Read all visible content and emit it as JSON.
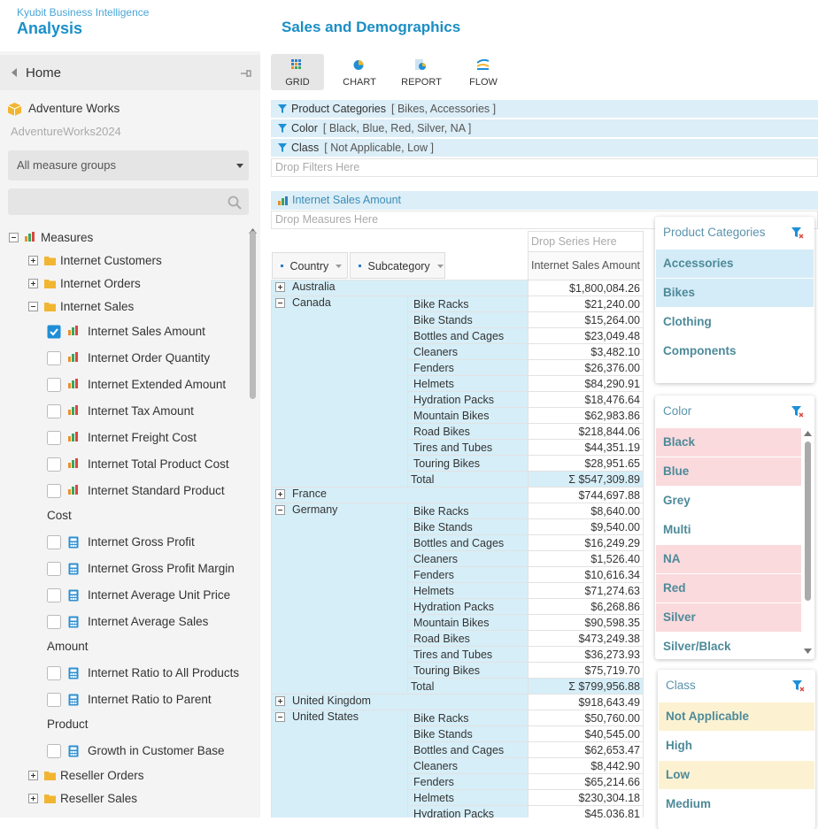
{
  "header": {
    "app": "Kyubit Business Intelligence",
    "title": "Analysis",
    "page_title": "Sales and Demographics"
  },
  "sidebar": {
    "home": "Home",
    "cube": "Adventure Works",
    "database": "AdventureWorks2024",
    "measure_groups": "All measure groups",
    "tree": [
      {
        "label": "Measures",
        "type": "root",
        "expanded": true
      },
      {
        "label": "Internet Customers",
        "type": "folder",
        "expanded": false
      },
      {
        "label": "Internet Orders",
        "type": "folder",
        "expanded": false
      },
      {
        "label": "Internet Sales",
        "type": "folder",
        "expanded": true
      },
      {
        "label": "Internet Sales Amount",
        "type": "measure",
        "checked": true
      },
      {
        "label": "Internet Order Quantity",
        "type": "measure",
        "checked": false
      },
      {
        "label": "Internet Extended Amount",
        "type": "measure",
        "checked": false
      },
      {
        "label": "Internet Tax Amount",
        "type": "measure",
        "checked": false
      },
      {
        "label": "Internet Freight Cost",
        "type": "measure",
        "checked": false
      },
      {
        "label": "Internet Total Product Cost",
        "type": "measure",
        "checked": false
      },
      {
        "label": "Internet Standard Product Cost",
        "type": "measure",
        "checked": false
      },
      {
        "label": "Internet Gross Profit",
        "type": "calc",
        "checked": false
      },
      {
        "label": "Internet Gross Profit Margin",
        "type": "calc",
        "checked": false
      },
      {
        "label": "Internet Average Unit Price",
        "type": "calc",
        "checked": false
      },
      {
        "label": "Internet Average Sales Amount",
        "type": "calc",
        "checked": false
      },
      {
        "label": "Internet Ratio to All Products",
        "type": "calc",
        "checked": false
      },
      {
        "label": "Internet Ratio to Parent Product",
        "type": "calc",
        "checked": false
      },
      {
        "label": "Growth in Customer Base",
        "type": "calc",
        "checked": false
      },
      {
        "label": "Reseller Orders",
        "type": "folder",
        "expanded": false
      },
      {
        "label": "Reseller Sales",
        "type": "folder",
        "expanded": false
      }
    ]
  },
  "toolbar": [
    {
      "label": "GRID",
      "active": true
    },
    {
      "label": "CHART",
      "active": false
    },
    {
      "label": "REPORT",
      "active": false
    },
    {
      "label": "FLOW",
      "active": false
    }
  ],
  "filters": [
    {
      "name": "Product Categories",
      "values": "[ Bikes, Accessories ]"
    },
    {
      "name": "Color",
      "values": "[ Black, Blue, Red, Silver, NA ]"
    },
    {
      "name": "Class",
      "values": "[ Not Applicable, Low ]"
    }
  ],
  "drop_filters": "Drop Filters Here",
  "measure": "Internet Sales Amount",
  "drop_measures": "Drop Measures Here",
  "drop_series": "Drop Series Here",
  "row_headers": [
    "Country",
    "Subcategory"
  ],
  "measure_header": "Internet Sales Amount",
  "groups": [
    {
      "country": "Australia",
      "expanded": false,
      "value": "$1,800,084.26"
    },
    {
      "country": "Canada",
      "expanded": true,
      "rows": [
        [
          "Bike Racks",
          "$21,240.00"
        ],
        [
          "Bike Stands",
          "$15,264.00"
        ],
        [
          "Bottles and Cages",
          "$23,049.48"
        ],
        [
          "Cleaners",
          "$3,482.10"
        ],
        [
          "Fenders",
          "$26,376.00"
        ],
        [
          "Helmets",
          "$84,290.91"
        ],
        [
          "Hydration Packs",
          "$18,476.64"
        ],
        [
          "Mountain Bikes",
          "$62,983.86"
        ],
        [
          "Road Bikes",
          "$218,844.06"
        ],
        [
          "Tires and Tubes",
          "$44,351.19"
        ],
        [
          "Touring Bikes",
          "$28,951.65"
        ]
      ],
      "total_label": "Total",
      "total": "Σ $547,309.89"
    },
    {
      "country": "France",
      "expanded": false,
      "value": "$744,697.88"
    },
    {
      "country": "Germany",
      "expanded": true,
      "rows": [
        [
          "Bike Racks",
          "$8,640.00"
        ],
        [
          "Bike Stands",
          "$9,540.00"
        ],
        [
          "Bottles and Cages",
          "$16,249.29"
        ],
        [
          "Cleaners",
          "$1,526.40"
        ],
        [
          "Fenders",
          "$10,616.34"
        ],
        [
          "Helmets",
          "$71,274.63"
        ],
        [
          "Hydration Packs",
          "$6,268.86"
        ],
        [
          "Mountain Bikes",
          "$90,598.35"
        ],
        [
          "Road Bikes",
          "$473,249.38"
        ],
        [
          "Tires and Tubes",
          "$36,273.93"
        ],
        [
          "Touring Bikes",
          "$75,719.70"
        ]
      ],
      "total_label": "Total",
      "total": "Σ $799,956.88"
    },
    {
      "country": "United Kingdom",
      "expanded": false,
      "value": "$918,643.49"
    },
    {
      "country": "United States",
      "expanded": true,
      "rows": [
        [
          "Bike Racks",
          "$50,760.00"
        ],
        [
          "Bike Stands",
          "$40,545.00"
        ],
        [
          "Bottles and Cages",
          "$62,653.47"
        ],
        [
          "Cleaners",
          "$8,442.90"
        ],
        [
          "Fenders",
          "$65,214.66"
        ],
        [
          "Helmets",
          "$230,304.18"
        ],
        [
          "Hydration Packs",
          "$45,036.81"
        ]
      ]
    }
  ],
  "panels": [
    {
      "title": "Product Categories",
      "select_color": "#d4ecf7",
      "items": [
        {
          "label": "Accessories",
          "selected": true
        },
        {
          "label": "Bikes",
          "selected": true
        },
        {
          "label": "Clothing",
          "selected": false
        },
        {
          "label": "Components",
          "selected": false
        }
      ]
    },
    {
      "title": "Color",
      "select_color": "#fadadd",
      "items": [
        {
          "label": "Black",
          "selected": true
        },
        {
          "label": "Blue",
          "selected": true
        },
        {
          "label": "Grey",
          "selected": false
        },
        {
          "label": "Multi",
          "selected": false
        },
        {
          "label": "NA",
          "selected": true
        },
        {
          "label": "Red",
          "selected": true
        },
        {
          "label": "Silver",
          "selected": true
        },
        {
          "label": "Silver/Black",
          "selected": false
        }
      ]
    },
    {
      "title": "Class",
      "select_color": "#fcf2d2",
      "items": [
        {
          "label": "Not Applicable",
          "selected": true
        },
        {
          "label": "High",
          "selected": false
        },
        {
          "label": "Low",
          "selected": true
        },
        {
          "label": "Medium",
          "selected": false
        }
      ]
    }
  ]
}
